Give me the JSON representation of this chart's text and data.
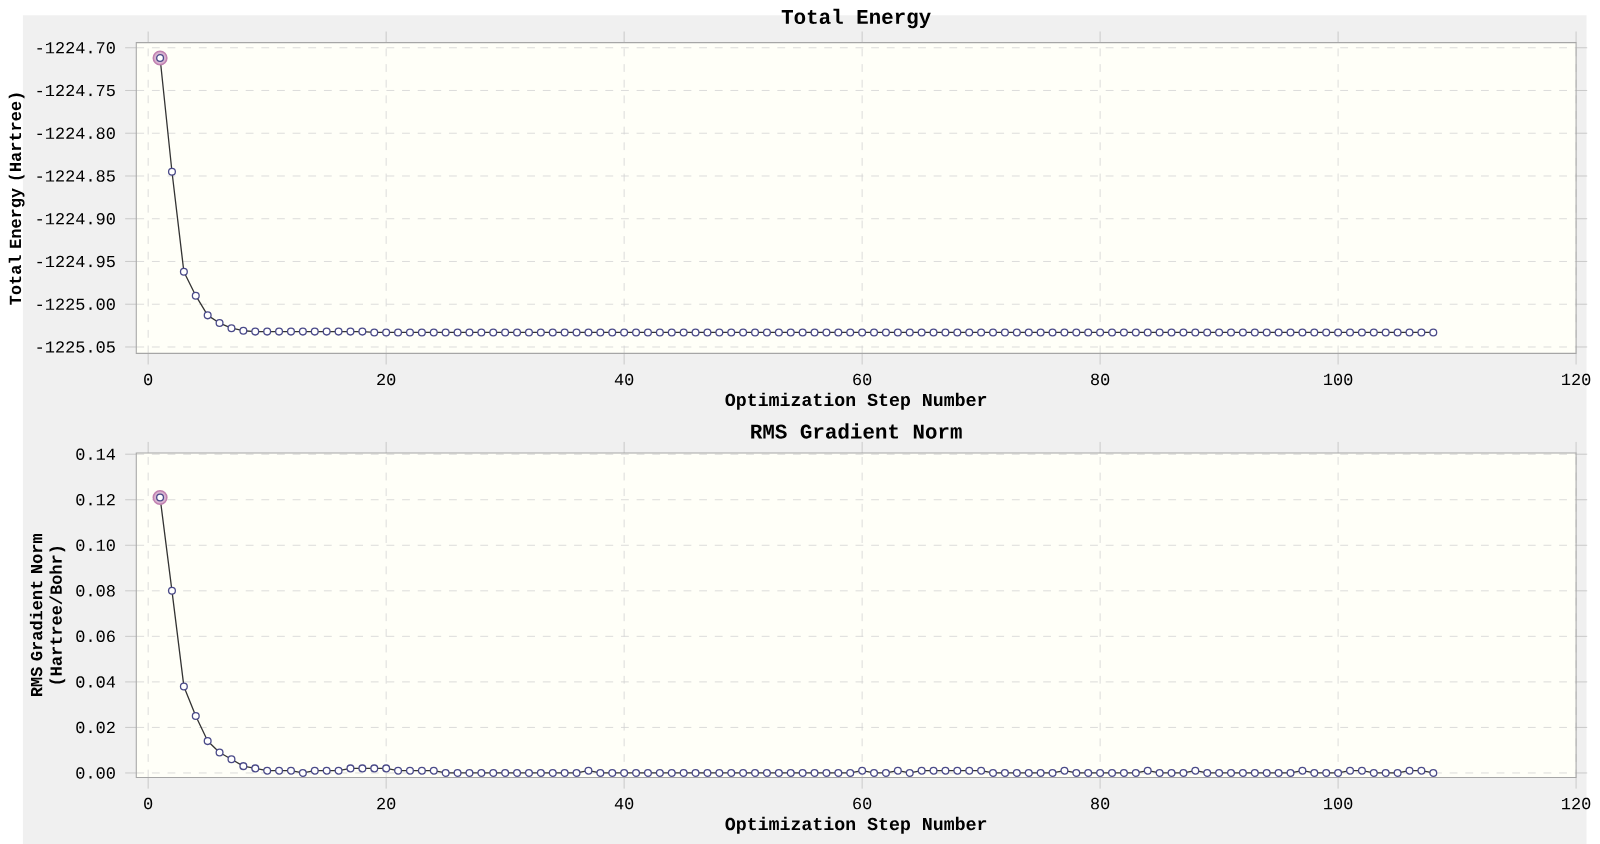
{
  "chart_data": [
    {
      "type": "line",
      "title": "Total Energy",
      "xlabel": "Optimization Step Number",
      "ylabel": "Total Energy (Hartree)",
      "x": [
        1,
        2,
        3,
        4,
        5,
        6,
        7,
        8,
        9,
        10,
        11,
        12,
        13,
        14,
        15,
        16,
        17,
        18,
        19,
        20,
        21,
        22,
        23,
        24,
        25,
        26,
        27,
        28,
        29,
        30,
        31,
        32,
        33,
        34,
        35,
        36,
        37,
        38,
        39,
        40,
        41,
        42,
        43,
        44,
        45,
        46,
        47,
        48,
        49,
        50,
        51,
        52,
        53,
        54,
        55,
        56,
        57,
        58,
        59,
        60,
        61,
        62,
        63,
        64,
        65,
        66,
        67,
        68,
        69,
        70,
        71,
        72,
        73,
        74,
        75,
        76,
        77,
        78,
        79,
        80,
        81,
        82,
        83,
        84,
        85,
        86,
        87,
        88,
        89,
        90,
        91,
        92,
        93,
        94,
        95,
        96,
        97,
        98,
        99,
        100,
        101,
        102,
        103,
        104,
        105,
        106,
        107,
        108
      ],
      "series": [
        {
          "type": "scatter",
          "color": "#c080b0",
          "x": [
            1
          ],
          "values": [
            -1224.712
          ]
        },
        {
          "color": "#4a4a88",
          "values": [
            -1224.712,
            -1224.845,
            -1224.962,
            -1224.99,
            -1225.013,
            -1225.022,
            -1225.028,
            -1225.031,
            -1225.032,
            -1225.032,
            -1225.032,
            -1225.032,
            -1225.032,
            -1225.032,
            -1225.032,
            -1225.032,
            -1225.032,
            -1225.032,
            -1225.033,
            -1225.033,
            -1225.033,
            -1225.033,
            -1225.033,
            -1225.033,
            -1225.033,
            -1225.033,
            -1225.033,
            -1225.033,
            -1225.033,
            -1225.033,
            -1225.033,
            -1225.033,
            -1225.033,
            -1225.033,
            -1225.033,
            -1225.033,
            -1225.033,
            -1225.033,
            -1225.033,
            -1225.033,
            -1225.033,
            -1225.033,
            -1225.033,
            -1225.033,
            -1225.033,
            -1225.033,
            -1225.033,
            -1225.033,
            -1225.033,
            -1225.033,
            -1225.033,
            -1225.033,
            -1225.033,
            -1225.033,
            -1225.033,
            -1225.033,
            -1225.033,
            -1225.033,
            -1225.033,
            -1225.033,
            -1225.033,
            -1225.033,
            -1225.033,
            -1225.033,
            -1225.033,
            -1225.033,
            -1225.033,
            -1225.033,
            -1225.033,
            -1225.033,
            -1225.033,
            -1225.033,
            -1225.033,
            -1225.033,
            -1225.033,
            -1225.033,
            -1225.033,
            -1225.033,
            -1225.033,
            -1225.033,
            -1225.033,
            -1225.033,
            -1225.033,
            -1225.033,
            -1225.033,
            -1225.033,
            -1225.033,
            -1225.033,
            -1225.033,
            -1225.033,
            -1225.033,
            -1225.033,
            -1225.033,
            -1225.033,
            -1225.033,
            -1225.033,
            -1225.033,
            -1225.033,
            -1225.033,
            -1225.033,
            -1225.033,
            -1225.033,
            -1225.033,
            -1225.033,
            -1225.033,
            -1225.033,
            -1225.033,
            -1225.033
          ]
        }
      ],
      "xlim": [
        -1,
        120
      ],
      "ylim": [
        -1225.0575,
        -1224.694
      ],
      "xticks": [
        0,
        20,
        40,
        60,
        80,
        100,
        120
      ],
      "yticks": [
        {
          "value": -1225.05,
          "label": "-1225.05"
        },
        {
          "value": -1225.0,
          "label": "-1225.00"
        },
        {
          "value": -1224.95,
          "label": "-1224.95"
        },
        {
          "value": -1224.9,
          "label": "-1224.90"
        },
        {
          "value": -1224.85,
          "label": "-1224.85"
        },
        {
          "value": -1224.8,
          "label": "-1224.80"
        },
        {
          "value": -1224.75,
          "label": "-1224.75"
        },
        {
          "value": -1224.7,
          "label": "-1224.70"
        }
      ],
      "grid": true,
      "marker": "circle"
    },
    {
      "type": "line",
      "title": "RMS Gradient Norm",
      "xlabel": "Optimization Step Number",
      "ylabel": "RMS Gradient Norm (Hartree/Bohr)",
      "x": [
        1,
        2,
        3,
        4,
        5,
        6,
        7,
        8,
        9,
        10,
        11,
        12,
        13,
        14,
        15,
        16,
        17,
        18,
        19,
        20,
        21,
        22,
        23,
        24,
        25,
        26,
        27,
        28,
        29,
        30,
        31,
        32,
        33,
        34,
        35,
        36,
        37,
        38,
        39,
        40,
        41,
        42,
        43,
        44,
        45,
        46,
        47,
        48,
        49,
        50,
        51,
        52,
        53,
        54,
        55,
        56,
        57,
        58,
        59,
        60,
        61,
        62,
        63,
        64,
        65,
        66,
        67,
        68,
        69,
        70,
        71,
        72,
        73,
        74,
        75,
        76,
        77,
        78,
        79,
        80,
        81,
        82,
        83,
        84,
        85,
        86,
        87,
        88,
        89,
        90,
        91,
        92,
        93,
        94,
        95,
        96,
        97,
        98,
        99,
        100,
        101,
        102,
        103,
        104,
        105,
        106,
        107,
        108
      ],
      "series": [
        {
          "type": "scatter",
          "color": "#c080b0",
          "x": [
            1
          ],
          "values": [
            0.121
          ]
        },
        {
          "color": "#4a4a88",
          "values": [
            0.121,
            0.08,
            0.038,
            0.025,
            0.014,
            0.009,
            0.006,
            0.003,
            0.002,
            0.001,
            0.001,
            0.001,
            0.0,
            0.001,
            0.001,
            0.001,
            0.002,
            0.002,
            0.002,
            0.002,
            0.001,
            0.001,
            0.001,
            0.001,
            0.0,
            0.0,
            0.0,
            0.0,
            0.0,
            0.0,
            0.0,
            0.0,
            0.0,
            0.0,
            0.0,
            0.0,
            0.001,
            0.0,
            0.0,
            0.0,
            0.0,
            0.0,
            0.0,
            0.0,
            0.0,
            0.0,
            0.0,
            0.0,
            0.0,
            0.0,
            0.0,
            0.0,
            0.0,
            0.0,
            0.0,
            0.0,
            0.0,
            0.0,
            0.0,
            0.001,
            0.0,
            0.0,
            0.001,
            0.0,
            0.001,
            0.001,
            0.001,
            0.001,
            0.001,
            0.001,
            0.0,
            0.0,
            0.0,
            0.0,
            0.0,
            0.0,
            0.001,
            0.0,
            0.0,
            0.0,
            0.0,
            0.0,
            0.0,
            0.001,
            0.0,
            0.0,
            0.0,
            0.001,
            0.0,
            0.0,
            0.0,
            0.0,
            0.0,
            0.0,
            0.0,
            0.0,
            0.001,
            0.0,
            0.0,
            0.0,
            0.001,
            0.001,
            0.0,
            0.0,
            0.0,
            0.001,
            0.001,
            0.0
          ]
        }
      ],
      "xlim": [
        -1,
        120
      ],
      "ylim": [
        -0.002,
        0.1405
      ],
      "xticks": [
        0,
        20,
        40,
        60,
        80,
        100,
        120
      ],
      "yticks": [
        {
          "value": 0.0,
          "label": "0.00"
        },
        {
          "value": 0.02,
          "label": "0.02"
        },
        {
          "value": 0.04,
          "label": "0.04"
        },
        {
          "value": 0.06,
          "label": "0.06"
        },
        {
          "value": 0.08,
          "label": "0.08"
        },
        {
          "value": 0.1,
          "label": "0.10"
        },
        {
          "value": 0.12,
          "label": "0.12"
        },
        {
          "value": 0.14,
          "label": "0.14"
        }
      ],
      "grid": true,
      "marker": "circle"
    }
  ]
}
